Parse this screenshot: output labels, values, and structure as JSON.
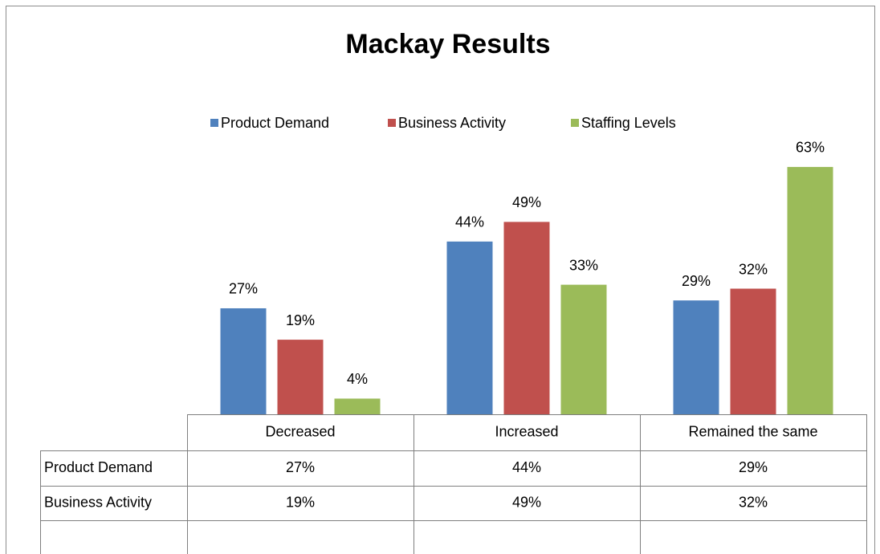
{
  "chart_data": {
    "type": "bar",
    "title": "Mackay Results",
    "categories": [
      "Decreased",
      "Increased",
      "Remained the same"
    ],
    "series": [
      {
        "name": "Product Demand",
        "color": "#4f81bd",
        "values": [
          27,
          44,
          29
        ],
        "value_labels": [
          "27%",
          "44%",
          "29%"
        ]
      },
      {
        "name": "Business Activity",
        "color": "#c0504d",
        "values": [
          19,
          49,
          32
        ],
        "value_labels": [
          "19%",
          "49%",
          "32%"
        ]
      },
      {
        "name": "Staffing Levels",
        "color": "#9bbb59",
        "values": [
          4,
          33,
          63
        ],
        "value_labels": [
          "4%",
          "33%",
          "63%"
        ]
      }
    ],
    "table_series": [
      0,
      1
    ]
  }
}
